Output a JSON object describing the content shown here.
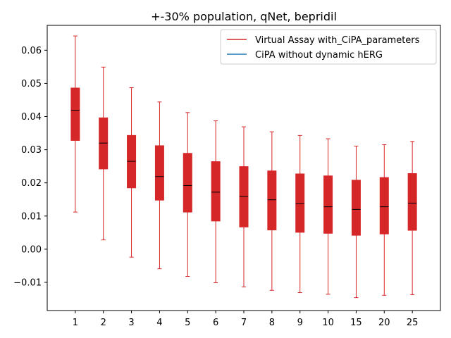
{
  "chart_data": {
    "type": "box",
    "title": "+-30% population, qNet, bepridil",
    "xlabel": "",
    "ylabel": "",
    "categories": [
      "1",
      "2",
      "3",
      "4",
      "5",
      "6",
      "7",
      "8",
      "9",
      "10",
      "15",
      "20",
      "25"
    ],
    "ylim": [
      -0.0185,
      0.0675
    ],
    "yticks": [
      -0.01,
      0.0,
      0.01,
      0.02,
      0.03,
      0.04,
      0.05,
      0.06
    ],
    "ytick_labels": [
      "−0.01",
      "0.00",
      "0.01",
      "0.02",
      "0.03",
      "0.04",
      "0.05",
      "0.06"
    ],
    "grid": false,
    "legend_position": "top-right",
    "series": [
      {
        "name": "Virtual Assay with_CiPA_parameters",
        "color": "#d62728",
        "boxes": [
          {
            "whisker_low": 0.0112,
            "q1": 0.0328,
            "median": 0.0419,
            "q3": 0.0486,
            "whisker_high": 0.0643
          },
          {
            "whisker_low": 0.0028,
            "q1": 0.0242,
            "median": 0.032,
            "q3": 0.0396,
            "whisker_high": 0.0549
          },
          {
            "whisker_low": -0.0024,
            "q1": 0.0185,
            "median": 0.0265,
            "q3": 0.0343,
            "whisker_high": 0.0487
          },
          {
            "whisker_low": -0.0059,
            "q1": 0.0148,
            "median": 0.0219,
            "q3": 0.0312,
            "whisker_high": 0.0444
          },
          {
            "whisker_low": -0.0082,
            "q1": 0.0112,
            "median": 0.0192,
            "q3": 0.0289,
            "whisker_high": 0.0412
          },
          {
            "whisker_low": -0.0101,
            "q1": 0.0085,
            "median": 0.0172,
            "q3": 0.0264,
            "whisker_high": 0.0387
          },
          {
            "whisker_low": -0.0114,
            "q1": 0.0067,
            "median": 0.0159,
            "q3": 0.0249,
            "whisker_high": 0.0369
          },
          {
            "whisker_low": -0.0124,
            "q1": 0.0058,
            "median": 0.0149,
            "q3": 0.0236,
            "whisker_high": 0.0354
          },
          {
            "whisker_low": -0.0131,
            "q1": 0.0051,
            "median": 0.0137,
            "q3": 0.0227,
            "whisker_high": 0.0343
          },
          {
            "whisker_low": -0.0136,
            "q1": 0.0048,
            "median": 0.0128,
            "q3": 0.0221,
            "whisker_high": 0.0333
          },
          {
            "whisker_low": -0.0146,
            "q1": 0.0042,
            "median": 0.012,
            "q3": 0.0208,
            "whisker_high": 0.0311
          },
          {
            "whisker_low": -0.0139,
            "q1": 0.0046,
            "median": 0.0128,
            "q3": 0.0216,
            "whisker_high": 0.0315
          },
          {
            "whisker_low": -0.0137,
            "q1": 0.0057,
            "median": 0.0139,
            "q3": 0.0228,
            "whisker_high": 0.0325
          }
        ]
      },
      {
        "name": "CiPA without dynamic hERG",
        "color": "#1f77b4",
        "boxes": []
      }
    ]
  }
}
